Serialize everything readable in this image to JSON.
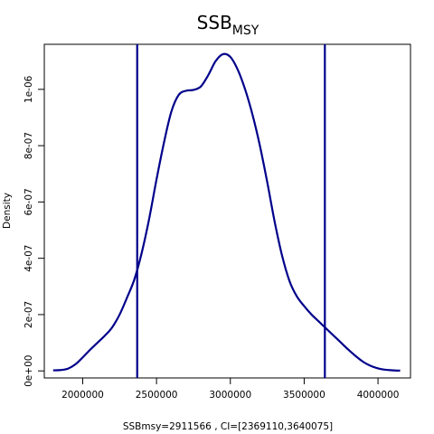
{
  "chart_data": {
    "type": "line",
    "title": {
      "main": "SSB",
      "subscript": "MSY"
    },
    "xlabel": "SSBmsy=2911566 , CI=[2369110,3640075]",
    "ylabel": "Density",
    "xlim": [
      1740000,
      4220000
    ],
    "ylim": [
      -2.5e-08,
      1.16e-06
    ],
    "x_ticks": [
      {
        "value": 2000000,
        "label": "2000000"
      },
      {
        "value": 2500000,
        "label": "2500000"
      },
      {
        "value": 3000000,
        "label": "3000000"
      },
      {
        "value": 3500000,
        "label": "3500000"
      },
      {
        "value": 4000000,
        "label": "4000000"
      }
    ],
    "y_ticks": [
      {
        "value": 0,
        "label": "0e+00"
      },
      {
        "value": 2e-07,
        "label": "2e-07"
      },
      {
        "value": 4e-07,
        "label": "4e-07"
      },
      {
        "value": 6e-07,
        "label": "6e-07"
      },
      {
        "value": 8e-07,
        "label": "8e-07"
      },
      {
        "value": 1e-06,
        "label": "1e-06"
      }
    ],
    "series": [
      {
        "color": "#00008b",
        "points": [
          [
            1800000,
            2e-09
          ],
          [
            1850000,
            3e-09
          ],
          [
            1900000,
            8e-09
          ],
          [
            1950000,
            2.3e-08
          ],
          [
            2000000,
            4.8e-08
          ],
          [
            2050000,
            7.5e-08
          ],
          [
            2100000,
            1e-07
          ],
          [
            2150000,
            1.25e-07
          ],
          [
            2200000,
            1.55e-07
          ],
          [
            2250000,
            2e-07
          ],
          [
            2300000,
            2.6e-07
          ],
          [
            2350000,
            3.25e-07
          ],
          [
            2400000,
            4.2e-07
          ],
          [
            2450000,
            5.4e-07
          ],
          [
            2500000,
            6.8e-07
          ],
          [
            2550000,
            8.1e-07
          ],
          [
            2600000,
            9.2e-07
          ],
          [
            2650000,
            9.8e-07
          ],
          [
            2700000,
            9.95e-07
          ],
          [
            2750000,
            9.98e-07
          ],
          [
            2800000,
            1.01e-06
          ],
          [
            2850000,
            1.05e-06
          ],
          [
            2900000,
            1.1e-06
          ],
          [
            2950000,
            1.125e-06
          ],
          [
            3000000,
            1.115e-06
          ],
          [
            3050000,
            1.07e-06
          ],
          [
            3100000,
            1e-06
          ],
          [
            3150000,
            9.1e-07
          ],
          [
            3200000,
            8e-07
          ],
          [
            3250000,
            6.7e-07
          ],
          [
            3300000,
            5.3e-07
          ],
          [
            3350000,
            4.1e-07
          ],
          [
            3400000,
            3.2e-07
          ],
          [
            3450000,
            2.65e-07
          ],
          [
            3500000,
            2.3e-07
          ],
          [
            3550000,
            2e-07
          ],
          [
            3600000,
            1.75e-07
          ],
          [
            3650000,
            1.5e-07
          ],
          [
            3700000,
            1.25e-07
          ],
          [
            3750000,
            1e-07
          ],
          [
            3800000,
            7.5e-08
          ],
          [
            3850000,
            5.2e-08
          ],
          [
            3900000,
            3.2e-08
          ],
          [
            3950000,
            1.8e-08
          ],
          [
            4000000,
            9e-09
          ],
          [
            4050000,
            4e-09
          ],
          [
            4100000,
            2e-09
          ],
          [
            4150000,
            1e-09
          ]
        ]
      }
    ],
    "vlines": [
      2369110,
      3640075
    ],
    "vline_color": "#00008b"
  }
}
